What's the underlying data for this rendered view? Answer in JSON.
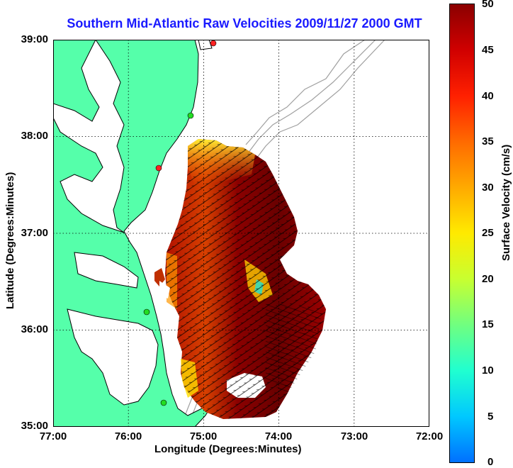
{
  "title": {
    "text": "Southern Mid-Atlantic Raw Velocities 2009/11/27 2000 GMT",
    "color": "#1a1aff"
  },
  "axes": {
    "xlabel": "Longitude (Degrees:Minutes)",
    "ylabel": "Latitude (Degrees:Minutes)",
    "x_ticks": [
      "77:00",
      "76:00",
      "75:00",
      "74:00",
      "73:00",
      "72:00"
    ],
    "y_ticks": [
      "39:00",
      "38:00",
      "37:00",
      "36:00",
      "35:00"
    ],
    "xlim": [
      -77.0,
      -72.0
    ],
    "ylim": [
      35.0,
      39.0
    ],
    "grid": true
  },
  "colorbar": {
    "label": "Surface Velocity (cm/s)",
    "ticks": [
      "50",
      "45",
      "40",
      "35",
      "30",
      "25",
      "20",
      "15",
      "10",
      "5",
      "0"
    ],
    "range": [
      0,
      50
    ],
    "colormap": "jet"
  },
  "colors": {
    "land": "#55ffaa",
    "coastline": "#000000",
    "bathymetry": "#999999",
    "field_dark": "#8b0000",
    "field_mid": "#d24000",
    "field_low": "#ffd700",
    "station": "#22dd22",
    "station_alert": "#ff2222"
  },
  "stations": [
    {
      "lon": -74.9,
      "lat": 38.95,
      "status": "alert"
    },
    {
      "lon": -75.15,
      "lat": 38.22,
      "status": "ok"
    },
    {
      "lon": -75.55,
      "lat": 37.66,
      "status": "alert"
    },
    {
      "lon": -75.7,
      "lat": 36.19,
      "status": "ok"
    },
    {
      "lon": -75.45,
      "lat": 35.25,
      "status": "ok"
    }
  ]
}
